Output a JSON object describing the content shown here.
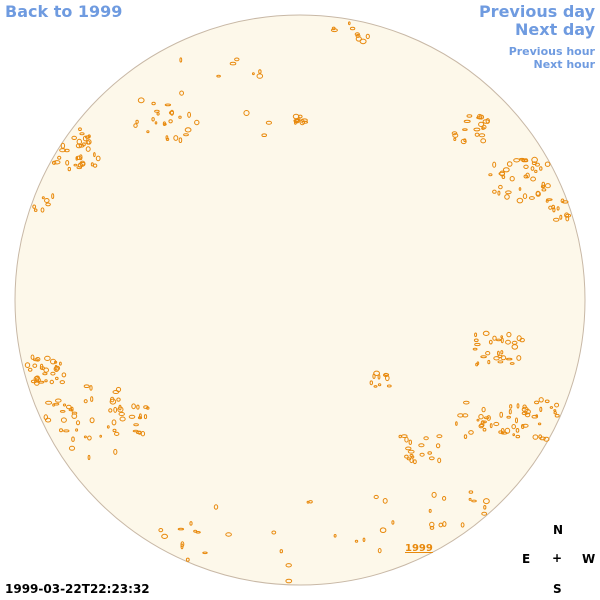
{
  "nav": {
    "back": "Back to 1999",
    "previous_day": "Previous day",
    "next_day": "Next day",
    "previous_hour": "Previous hour",
    "next_hour": "Next hour"
  },
  "timestamp": "1999-03-22T22:23:32",
  "year_label": "1999",
  "compass": {
    "north": "N",
    "east": "E",
    "center": "+",
    "west": "W",
    "south": "S"
  },
  "colors": {
    "disk_fill": "#fdf8ea",
    "disk_border": "#c8b8a6",
    "contour": "#e8890c",
    "link": "#6f9be0"
  }
}
